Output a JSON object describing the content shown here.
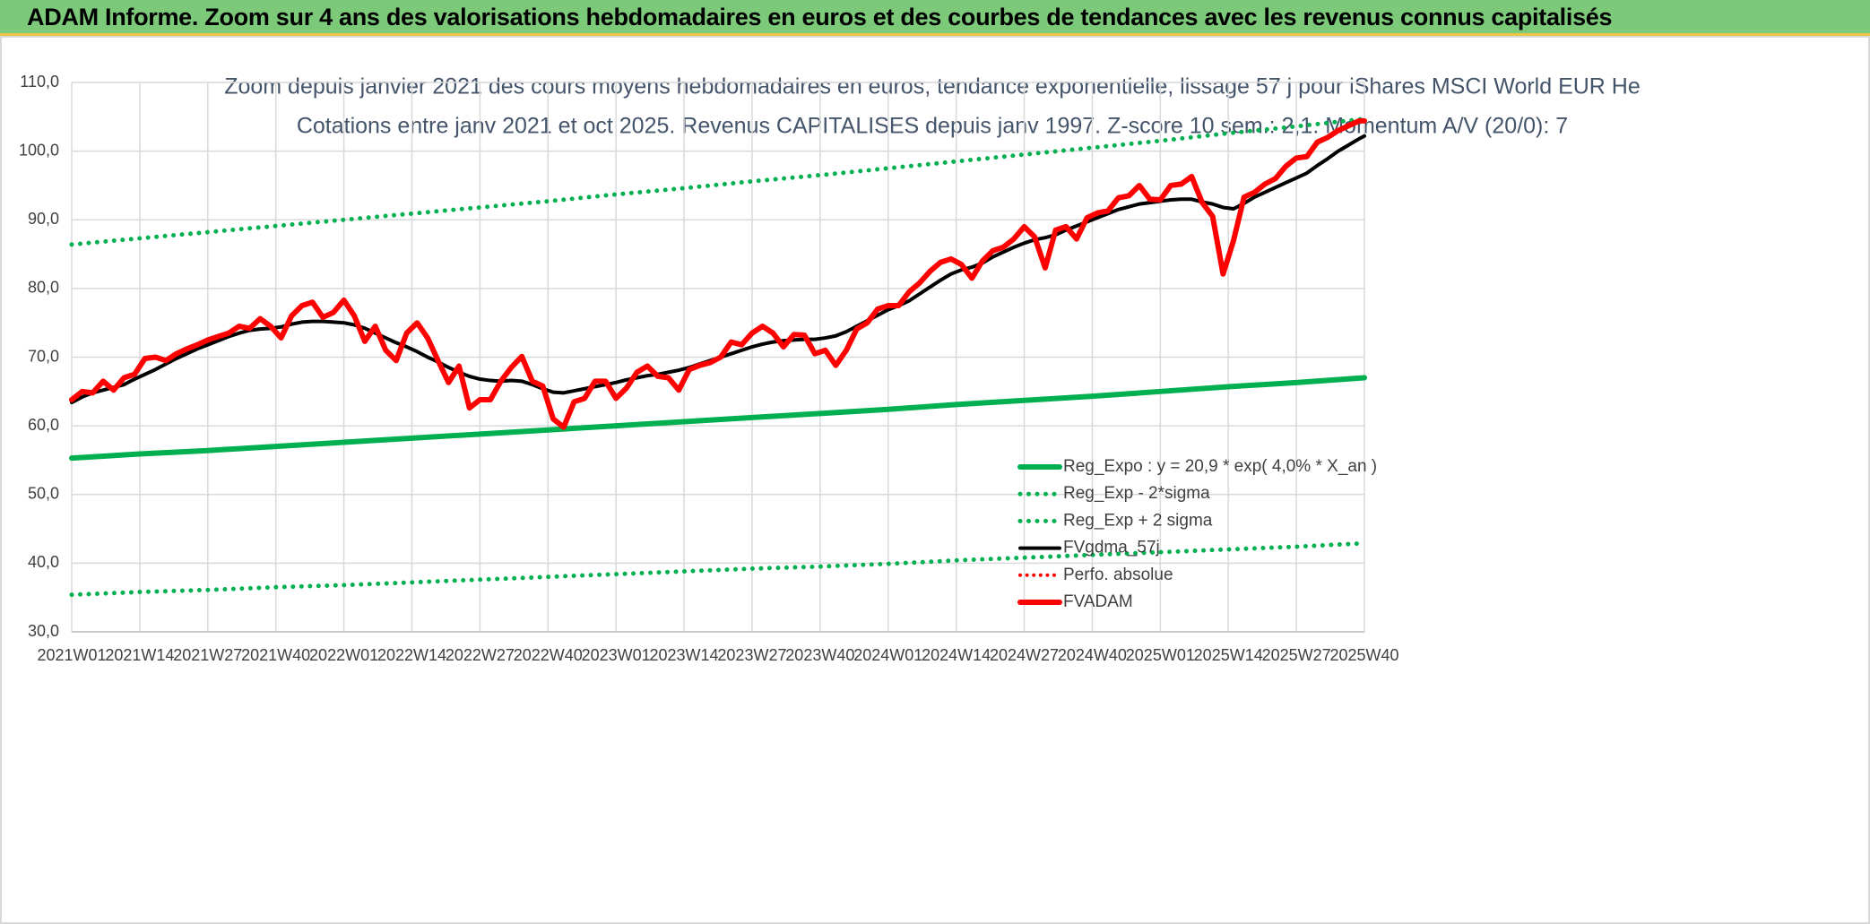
{
  "header": {
    "title": "ADAM Informe. Zoom sur 4 ans des valorisations hebdomadaires en euros et des courbes de tendances avec les revenus connus capitalisés"
  },
  "chart_data": {
    "type": "line",
    "title": "Zoom depuis janvier 2021 des cours moyens hebdomadaires en euros, tendance exponentielle, lissage 57 j pour iShares MSCI World EUR He",
    "subtitle": "Cotations entre janv 2021 et oct 2025. Revenus CAPITALISES depuis janv 1997. Z-score 10 sem.: 2,1. Momentum A/V (20/0): 7",
    "xlim": [
      0,
      247
    ],
    "xticks": [
      {
        "value": 0,
        "label": "2021W01"
      },
      {
        "value": 13,
        "label": "2021W14"
      },
      {
        "value": 26,
        "label": "2021W27"
      },
      {
        "value": 39,
        "label": "2021W40"
      },
      {
        "value": 52,
        "label": "2022W01"
      },
      {
        "value": 65,
        "label": "2022W14"
      },
      {
        "value": 78,
        "label": "2022W27"
      },
      {
        "value": 91,
        "label": "2022W40"
      },
      {
        "value": 104,
        "label": "2023W01"
      },
      {
        "value": 117,
        "label": "2023W14"
      },
      {
        "value": 130,
        "label": "2023W27"
      },
      {
        "value": 143,
        "label": "2023W40"
      },
      {
        "value": 156,
        "label": "2024W01"
      },
      {
        "value": 169,
        "label": "2024W14"
      },
      {
        "value": 182,
        "label": "2024W27"
      },
      {
        "value": 195,
        "label": "2024W40"
      },
      {
        "value": 208,
        "label": "2025W01"
      },
      {
        "value": 221,
        "label": "2025W14"
      },
      {
        "value": 234,
        "label": "2025W27"
      },
      {
        "value": 247,
        "label": "2025W40"
      }
    ],
    "ylim": [
      30,
      110
    ],
    "yticks": [
      {
        "value": 30,
        "label": "30,0"
      },
      {
        "value": 40,
        "label": "40,0"
      },
      {
        "value": 50,
        "label": "50,0"
      },
      {
        "value": 60,
        "label": "60,0"
      },
      {
        "value": 70,
        "label": "70,0"
      },
      {
        "value": 80,
        "label": "80,0"
      },
      {
        "value": 90,
        "label": "90,0"
      },
      {
        "value": 100,
        "label": "100,0"
      },
      {
        "value": 110,
        "label": "110,0"
      }
    ],
    "grid": true,
    "legend": "lower-right",
    "x": [
      0,
      2,
      4,
      6,
      8,
      10,
      12,
      14,
      16,
      18,
      20,
      22,
      24,
      26,
      28,
      30,
      32,
      34,
      36,
      38,
      40,
      42,
      44,
      46,
      48,
      50,
      52,
      54,
      56,
      58,
      60,
      62,
      64,
      66,
      68,
      70,
      72,
      74,
      76,
      78,
      80,
      82,
      84,
      86,
      88,
      90,
      92,
      94,
      96,
      98,
      100,
      102,
      104,
      106,
      108,
      110,
      112,
      114,
      116,
      118,
      120,
      122,
      124,
      126,
      128,
      130,
      132,
      134,
      136,
      138,
      140,
      142,
      144,
      146,
      148,
      150,
      152,
      154,
      156,
      158,
      160,
      162,
      164,
      166,
      168,
      170,
      172,
      174,
      176,
      178,
      180,
      182,
      184,
      186,
      188,
      190,
      192,
      194,
      196,
      198,
      200,
      202,
      204,
      206,
      208,
      210,
      212,
      214,
      216,
      218,
      220,
      222,
      224,
      226,
      228,
      230,
      232,
      234,
      236,
      238,
      240,
      242,
      244,
      246,
      247
    ],
    "series": [
      {
        "name": "Reg_Expo : y = 20,9 * exp( 4,0% *  X_an )",
        "color": "#00b050",
        "style": "solid",
        "width": 6,
        "x": [
          0,
          13,
          26,
          39,
          52,
          65,
          78,
          91,
          104,
          117,
          130,
          143,
          156,
          169,
          182,
          195,
          208,
          221,
          234,
          247
        ],
        "values": [
          55.3,
          55.9,
          56.4,
          57.0,
          57.6,
          58.2,
          58.8,
          59.4,
          60.0,
          60.6,
          61.2,
          61.8,
          62.4,
          63.1,
          63.7,
          64.3,
          65.0,
          65.7,
          66.3,
          67.0
        ]
      },
      {
        "name": "Reg_Exp - 2*sigma",
        "color": "#00b050",
        "style": "dotted",
        "width": 5,
        "x": [
          0,
          13,
          26,
          39,
          52,
          65,
          78,
          91,
          104,
          117,
          130,
          143,
          156,
          169,
          182,
          195,
          208,
          221,
          234,
          247
        ],
        "values": [
          35.4,
          35.8,
          36.1,
          36.5,
          36.8,
          37.2,
          37.6,
          38.0,
          38.4,
          38.8,
          39.2,
          39.5,
          39.9,
          40.4,
          40.8,
          41.2,
          41.6,
          42.0,
          42.4,
          42.9
        ]
      },
      {
        "name": "Reg_Exp + 2 sigma",
        "color": "#00b050",
        "style": "dotted",
        "width": 5,
        "x": [
          0,
          13,
          26,
          39,
          52,
          65,
          78,
          91,
          104,
          117,
          130,
          143,
          156,
          169,
          182,
          195,
          208,
          221,
          234,
          247
        ],
        "values": [
          86.4,
          87.3,
          88.2,
          89.1,
          90.0,
          90.9,
          91.8,
          92.7,
          93.7,
          94.6,
          95.6,
          96.5,
          97.5,
          98.5,
          99.5,
          100.5,
          101.5,
          102.6,
          103.6,
          104.7
        ]
      },
      {
        "name": "FVgdma_57j",
        "color": "#000000",
        "style": "solid",
        "width": 4,
        "values": [
          63.4,
          64.2,
          64.8,
          65.2,
          65.6,
          66.0,
          66.8,
          67.5,
          68.2,
          69.0,
          69.8,
          70.5,
          71.2,
          71.8,
          72.4,
          73.0,
          73.5,
          73.9,
          74.1,
          74.2,
          74.4,
          74.8,
          75.1,
          75.2,
          75.2,
          75.1,
          75.0,
          74.7,
          74.2,
          73.5,
          72.8,
          72.1,
          71.5,
          70.8,
          70.0,
          69.3,
          68.5,
          67.8,
          67.2,
          66.8,
          66.6,
          66.5,
          66.6,
          66.5,
          66.0,
          65.4,
          64.9,
          64.8,
          65.1,
          65.4,
          65.7,
          66.0,
          66.3,
          66.7,
          67.0,
          67.3,
          67.5,
          67.8,
          68.1,
          68.5,
          69.0,
          69.5,
          70.0,
          70.5,
          71.0,
          71.5,
          71.9,
          72.2,
          72.4,
          72.5,
          72.6,
          72.6,
          72.8,
          73.1,
          73.7,
          74.5,
          75.3,
          76.1,
          76.9,
          77.5,
          78.2,
          79.2,
          80.2,
          81.2,
          82.1,
          82.7,
          83.1,
          83.7,
          84.6,
          85.3,
          86.0,
          86.6,
          87.1,
          87.4,
          87.8,
          88.5,
          89.1,
          89.7,
          90.3,
          90.9,
          91.5,
          91.9,
          92.3,
          92.5,
          92.7,
          92.9,
          93.0,
          93.0,
          92.6,
          92.3,
          91.8,
          91.6,
          92.4,
          93.3,
          94.0,
          94.7,
          95.4,
          96.1,
          96.8,
          97.9,
          98.9,
          100.0,
          100.9,
          101.8,
          102.2
        ]
      },
      {
        "name": "Perfo. absolue",
        "color": "#ff0000",
        "style": "dotted",
        "width": 4,
        "x": [],
        "values": []
      },
      {
        "name": "FVADAM",
        "color": "#ff0000",
        "style": "solid",
        "width": 6,
        "values": [
          63.8,
          65.0,
          64.8,
          66.5,
          65.2,
          67.0,
          67.5,
          69.8,
          70.0,
          69.5,
          70.5,
          71.2,
          71.8,
          72.5,
          73.0,
          73.5,
          74.5,
          74.2,
          75.6,
          74.5,
          72.8,
          76.0,
          77.5,
          78.0,
          75.8,
          76.5,
          78.3,
          76.0,
          72.3,
          74.5,
          71.0,
          69.5,
          73.5,
          75.0,
          72.8,
          69.5,
          66.3,
          68.7,
          62.6,
          63.8,
          63.8,
          66.5,
          68.5,
          70.1,
          66.5,
          65.8,
          61.0,
          59.8,
          63.5,
          64.0,
          66.5,
          66.5,
          64.0,
          65.5,
          67.8,
          68.7,
          67.2,
          67.0,
          65.2,
          68.2,
          68.8,
          69.2,
          70.0,
          72.2,
          71.8,
          73.5,
          74.5,
          73.5,
          71.5,
          73.3,
          73.2,
          70.5,
          71.0,
          68.8,
          71.0,
          74.1,
          75.0,
          77.0,
          77.5,
          77.5,
          79.5,
          80.8,
          82.5,
          83.8,
          84.3,
          83.5,
          81.5,
          84.0,
          85.5,
          86.0,
          87.2,
          89.0,
          87.5,
          83.0,
          88.5,
          89.0,
          87.2,
          90.3,
          91.0,
          91.3,
          93.2,
          93.5,
          95.0,
          93.0,
          92.9,
          95.0,
          95.2,
          96.3,
          92.5,
          90.5,
          82.1,
          87.0,
          93.3,
          94.0,
          95.2,
          96.0,
          97.8,
          99.0,
          99.2,
          101.3,
          102.0,
          103.0,
          103.7,
          104.4,
          104.4
        ]
      }
    ]
  }
}
